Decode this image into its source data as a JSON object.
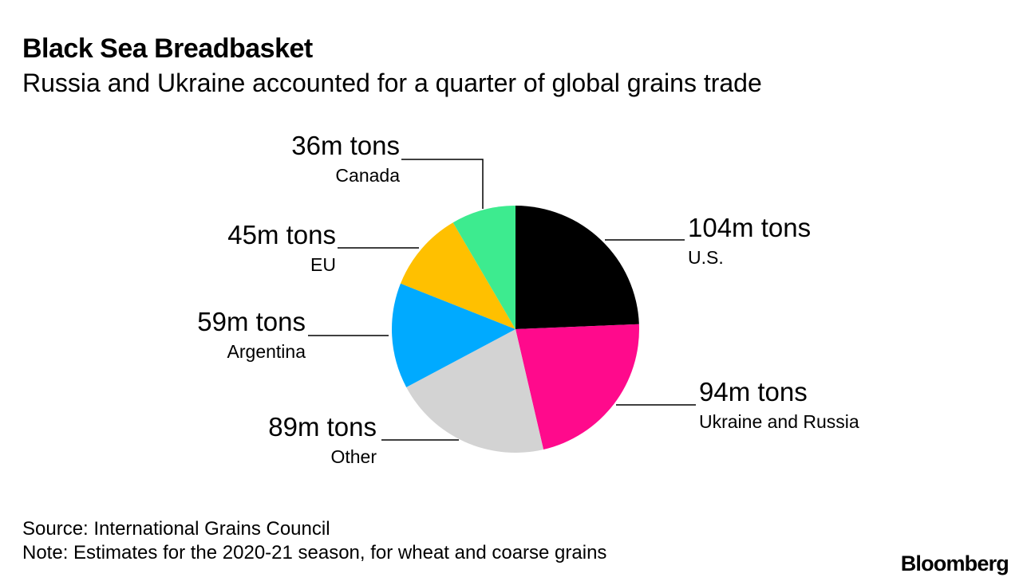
{
  "header": {
    "title": "Black Sea Breadbasket",
    "subtitle": "Russia and Ukraine accounted for a quarter of global grains trade"
  },
  "footer": {
    "source": "Source: International Grains Council",
    "note": "Note: Estimates for the 2020-21 season, for wheat and coarse grains",
    "brand": "Bloomberg"
  },
  "chart_data": {
    "type": "pie",
    "title": "Black Sea Breadbasket",
    "subtitle": "Russia and Ukraine accounted for a quarter of global grains trade",
    "unit": "m tons",
    "start": "12 o'clock",
    "direction": "clockwise",
    "slices": [
      {
        "label": "U.S.",
        "value": 104,
        "value_label": "104m tons",
        "color": "#000000"
      },
      {
        "label": "Ukraine and Russia",
        "value": 94,
        "value_label": "94m tons",
        "color": "#ff0a8c"
      },
      {
        "label": "Other",
        "value": 89,
        "value_label": "89m tons",
        "color": "#d3d3d3"
      },
      {
        "label": "Argentina",
        "value": 59,
        "value_label": "59m tons",
        "color": "#00aaff"
      },
      {
        "label": "EU",
        "value": 45,
        "value_label": "45m tons",
        "color": "#ffc000"
      },
      {
        "label": "Canada",
        "value": 36,
        "value_label": "36m tons",
        "color": "#3deb8f"
      }
    ]
  }
}
